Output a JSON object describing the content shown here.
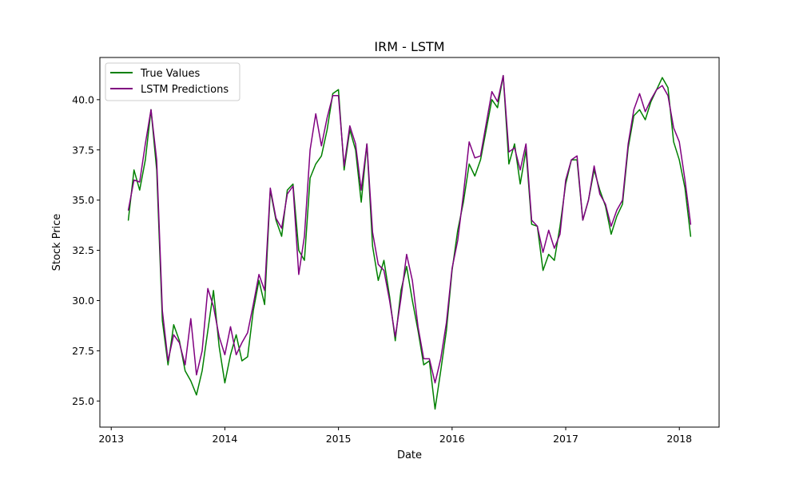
{
  "chart_data": {
    "type": "line",
    "title": "IRM - LSTM",
    "xlabel": "Date",
    "ylabel": "Stock Price",
    "xlim": [
      2012.9,
      2018.35
    ],
    "ylim": [
      23.7,
      42.1
    ],
    "x_ticks": [
      2013,
      2014,
      2015,
      2016,
      2017,
      2018
    ],
    "x_tick_labels": [
      "2013",
      "2014",
      "2015",
      "2016",
      "2017",
      "2018"
    ],
    "y_ticks": [
      25.0,
      27.5,
      30.0,
      32.5,
      35.0,
      37.5,
      40.0
    ],
    "y_tick_labels": [
      "25.0",
      "27.5",
      "30.0",
      "32.5",
      "35.0",
      "37.5",
      "40.0"
    ],
    "grid": false,
    "legend": {
      "position": "top-left"
    },
    "series": [
      {
        "name": "True Values",
        "color": "#008000",
        "x": [
          2013.15,
          2013.2,
          2013.25,
          2013.3,
          2013.35,
          2013.4,
          2013.45,
          2013.5,
          2013.55,
          2013.6,
          2013.65,
          2013.7,
          2013.75,
          2013.8,
          2013.85,
          2013.9,
          2013.95,
          2014.0,
          2014.05,
          2014.1,
          2014.15,
          2014.2,
          2014.25,
          2014.3,
          2014.35,
          2014.4,
          2014.45,
          2014.5,
          2014.55,
          2014.6,
          2014.65,
          2014.7,
          2014.75,
          2014.8,
          2014.85,
          2014.9,
          2014.95,
          2015.0,
          2015.05,
          2015.1,
          2015.15,
          2015.2,
          2015.25,
          2015.3,
          2015.35,
          2015.4,
          2015.45,
          2015.5,
          2015.55,
          2015.6,
          2015.65,
          2015.7,
          2015.75,
          2015.8,
          2015.85,
          2015.9,
          2015.95,
          2016.0,
          2016.05,
          2016.1,
          2016.15,
          2016.2,
          2016.25,
          2016.3,
          2016.35,
          2016.4,
          2016.45,
          2016.5,
          2016.55,
          2016.6,
          2016.65,
          2016.7,
          2016.75,
          2016.8,
          2016.85,
          2016.9,
          2016.95,
          2017.0,
          2017.05,
          2017.1,
          2017.15,
          2017.2,
          2017.25,
          2017.3,
          2017.35,
          2017.4,
          2017.45,
          2017.5,
          2017.55,
          2017.6,
          2017.65,
          2017.7,
          2017.75,
          2017.8,
          2017.85,
          2017.9,
          2017.95,
          2018.0,
          2018.05,
          2018.1
        ],
        "values": [
          34.0,
          36.5,
          35.5,
          37.0,
          39.5,
          36.5,
          29.0,
          26.8,
          28.8,
          28.0,
          26.5,
          26.0,
          25.3,
          26.5,
          28.5,
          30.5,
          27.7,
          25.9,
          27.3,
          28.3,
          27.0,
          27.2,
          29.5,
          31.0,
          29.8,
          35.5,
          34.0,
          33.2,
          35.5,
          35.8,
          32.5,
          32.0,
          36.1,
          36.8,
          37.2,
          38.5,
          40.3,
          40.5,
          36.5,
          38.5,
          37.5,
          34.9,
          37.8,
          32.7,
          31.0,
          32.0,
          30.2,
          28.0,
          30.5,
          31.7,
          30.0,
          28.5,
          26.8,
          27.0,
          24.6,
          26.5,
          28.5,
          31.5,
          33.5,
          34.9,
          36.8,
          36.2,
          37.0,
          38.5,
          40.0,
          39.6,
          41.2,
          36.8,
          37.8,
          35.8,
          37.5,
          33.8,
          33.7,
          31.5,
          32.3,
          32.0,
          33.7,
          35.8,
          37.0,
          37.0,
          34.0,
          35.0,
          36.5,
          35.5,
          34.7,
          33.3,
          34.2,
          34.8,
          37.6,
          39.2,
          39.5,
          39.0,
          39.9,
          40.5,
          41.1,
          40.6,
          37.9,
          37.0,
          35.6,
          33.2
        ]
      },
      {
        "name": "LSTM Predictions",
        "color": "#800080",
        "x": [
          2013.15,
          2013.2,
          2013.25,
          2013.3,
          2013.35,
          2013.4,
          2013.45,
          2013.5,
          2013.55,
          2013.6,
          2013.65,
          2013.7,
          2013.75,
          2013.8,
          2013.85,
          2013.9,
          2013.95,
          2014.0,
          2014.05,
          2014.1,
          2014.15,
          2014.2,
          2014.25,
          2014.3,
          2014.35,
          2014.4,
          2014.45,
          2014.5,
          2014.55,
          2014.6,
          2014.65,
          2014.7,
          2014.75,
          2014.8,
          2014.85,
          2014.9,
          2014.95,
          2015.0,
          2015.05,
          2015.1,
          2015.15,
          2015.2,
          2015.25,
          2015.3,
          2015.35,
          2015.4,
          2015.45,
          2015.5,
          2015.55,
          2015.6,
          2015.65,
          2015.7,
          2015.75,
          2015.8,
          2015.85,
          2015.9,
          2015.95,
          2016.0,
          2016.05,
          2016.1,
          2016.15,
          2016.2,
          2016.25,
          2016.3,
          2016.35,
          2016.4,
          2016.45,
          2016.5,
          2016.55,
          2016.6,
          2016.65,
          2016.7,
          2016.75,
          2016.8,
          2016.85,
          2016.9,
          2016.95,
          2017.0,
          2017.05,
          2017.1,
          2017.15,
          2017.2,
          2017.25,
          2017.3,
          2017.35,
          2017.4,
          2017.45,
          2017.5,
          2017.55,
          2017.6,
          2017.65,
          2017.7,
          2017.75,
          2017.8,
          2017.85,
          2017.9,
          2017.95,
          2018.0,
          2018.05,
          2018.1
        ],
        "values": [
          34.5,
          36.0,
          35.9,
          37.8,
          39.5,
          37.0,
          29.5,
          27.0,
          28.3,
          27.9,
          26.8,
          29.1,
          26.3,
          27.5,
          30.6,
          29.7,
          28.2,
          27.3,
          28.7,
          27.3,
          27.9,
          28.4,
          29.8,
          31.3,
          30.5,
          35.6,
          34.1,
          33.6,
          35.3,
          35.7,
          31.3,
          33.2,
          37.5,
          39.3,
          37.7,
          39.1,
          40.2,
          40.2,
          36.7,
          38.7,
          37.8,
          35.5,
          37.8,
          33.4,
          31.8,
          31.5,
          30.0,
          28.2,
          30.1,
          32.3,
          31.0,
          28.7,
          27.1,
          27.1,
          25.9,
          27.1,
          28.9,
          31.6,
          33.0,
          35.3,
          37.9,
          37.1,
          37.2,
          38.8,
          40.4,
          39.9,
          41.2,
          37.4,
          37.6,
          36.5,
          37.8,
          34.0,
          33.7,
          32.4,
          33.5,
          32.6,
          33.3,
          36.0,
          37.0,
          37.2,
          34.0,
          35.0,
          36.7,
          35.3,
          34.8,
          33.7,
          34.5,
          35.0,
          37.8,
          39.5,
          40.3,
          39.4,
          40.0,
          40.5,
          40.7,
          40.2,
          38.6,
          37.9,
          36.0,
          33.8
        ]
      }
    ]
  }
}
